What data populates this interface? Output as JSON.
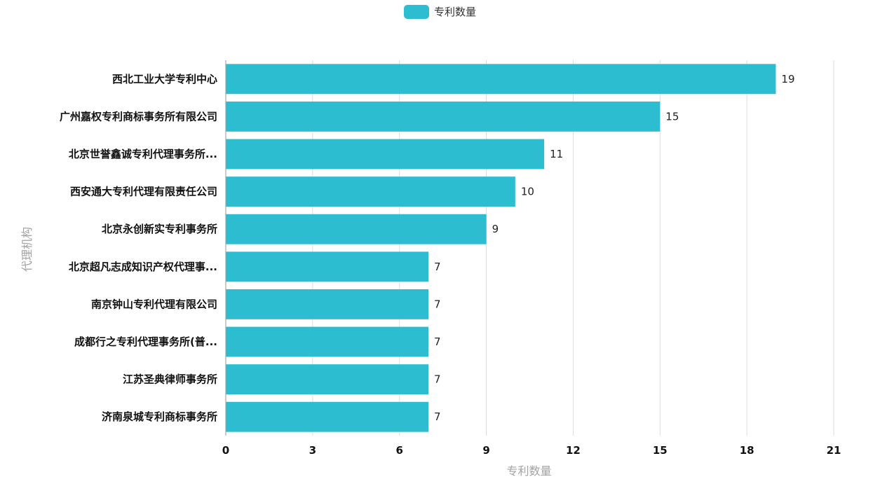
{
  "legend": {
    "label": "专利数量"
  },
  "colors": {
    "bar": "#2dbdd1",
    "grid": "#dddddd",
    "axis": "#9a9a9a"
  },
  "chart_data": {
    "type": "bar",
    "orientation": "horizontal",
    "categories": [
      "西北工业大学专利中心",
      "广州嘉权专利商标事务所有限公司",
      "北京世誉鑫诚专利代理事务所...",
      "西安通大专利代理有限责任公司",
      "北京永创新实专利事务所",
      "北京超凡志成知识产权代理事...",
      "南京钟山专利代理有限公司",
      "成都行之专利代理事务所(普...",
      "江苏圣典律师事务所",
      "济南泉城专利商标事务所"
    ],
    "series": [
      {
        "name": "专利数量",
        "values": [
          19,
          15,
          11,
          10,
          9,
          7,
          7,
          7,
          7,
          7
        ]
      }
    ],
    "xlabel": "专利数量",
    "ylabel": "代理机构",
    "xlim": [
      0,
      21
    ],
    "xticks": [
      0,
      3,
      6,
      9,
      12,
      15,
      18,
      21
    ],
    "grid": true,
    "legend_position": "top-center"
  }
}
